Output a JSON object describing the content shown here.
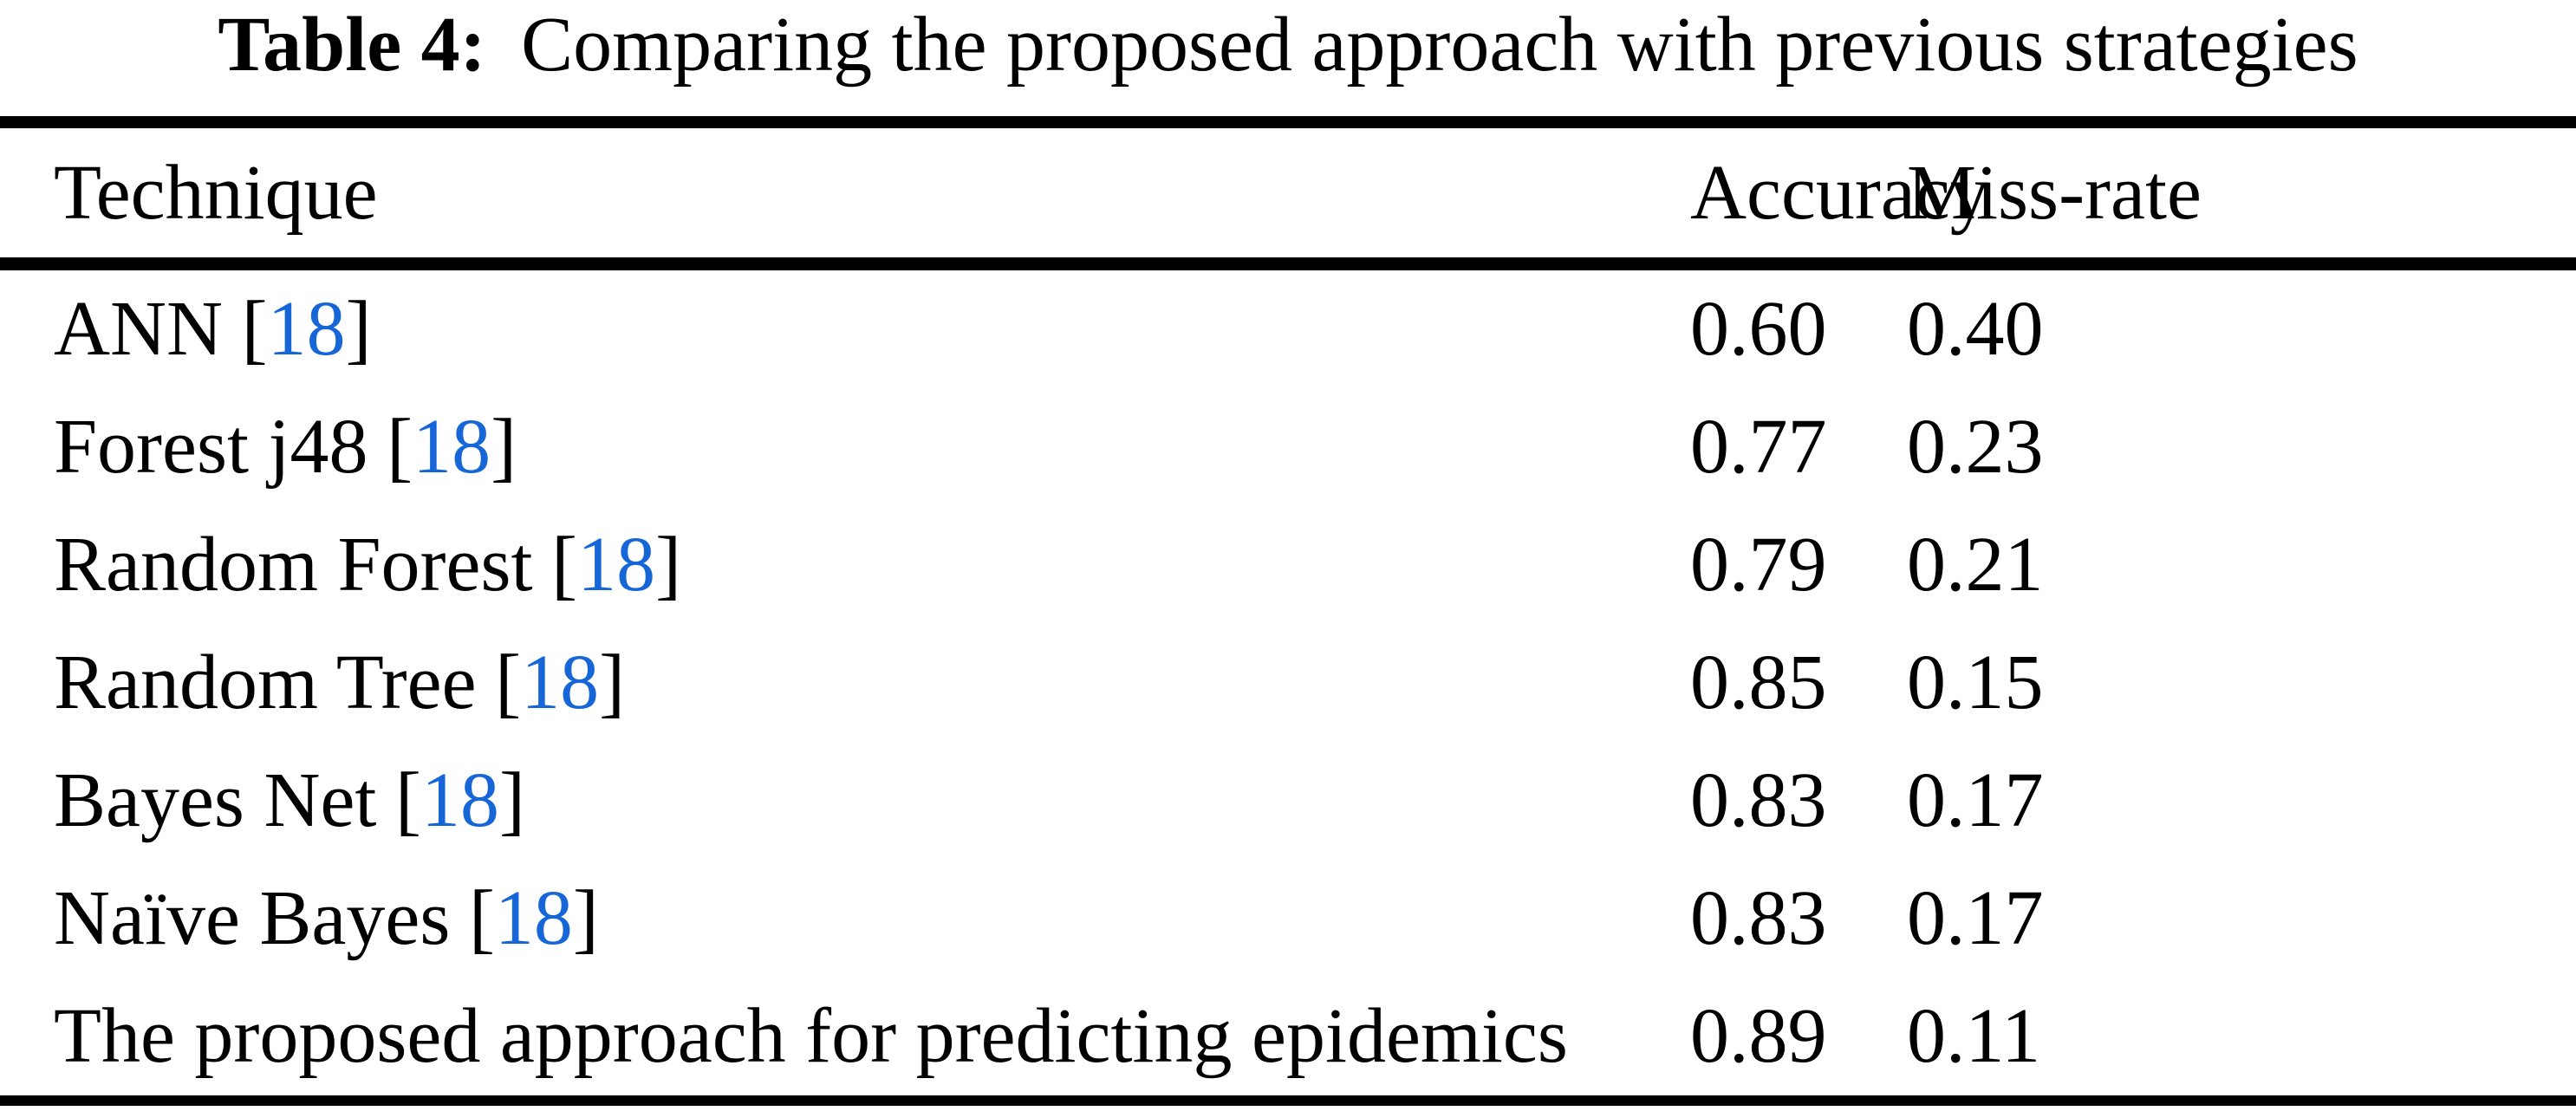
{
  "page": {
    "background": "#FFFFFF",
    "text_color": "#000000",
    "citation_color": "#1666D8"
  },
  "caption": {
    "label": "Table 4:",
    "title": "Comparing the proposed approach with previous strategies"
  },
  "header": {
    "technique": "Technique",
    "accuracy": "Accuracy",
    "miss_rate": "Miss-rate"
  },
  "rows": [
    {
      "technique": "ANN",
      "cite_open": "[",
      "cite": "18",
      "cite_close": "]",
      "accuracy": "0.60",
      "miss_rate": "0.40"
    },
    {
      "technique": "Forest j48",
      "cite_open": "[",
      "cite": "18",
      "cite_close": "]",
      "accuracy": "0.77",
      "miss_rate": "0.23"
    },
    {
      "technique": "Random Forest",
      "cite_open": "[",
      "cite": "18",
      "cite_close": "]",
      "accuracy": "0.79",
      "miss_rate": "0.21"
    },
    {
      "technique": "Random Tree",
      "cite_open": "[",
      "cite": "18",
      "cite_close": "]",
      "accuracy": "0.85",
      "miss_rate": "0.15"
    },
    {
      "technique": "Bayes Net",
      "cite_open": "[",
      "cite": "18",
      "cite_close": "]",
      "accuracy": "0.83",
      "miss_rate": "0.17"
    },
    {
      "technique": "Naïve Bayes",
      "cite_open": "[",
      "cite": "18",
      "cite_close": "]",
      "accuracy": "0.83",
      "miss_rate": "0.17"
    },
    {
      "technique": "The proposed approach for predicting epidemics",
      "accuracy": "0.89",
      "miss_rate": "0.11"
    }
  ]
}
